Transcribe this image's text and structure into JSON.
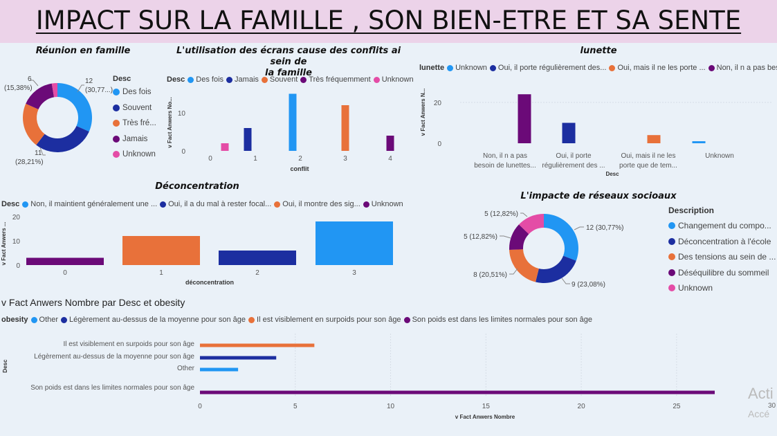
{
  "page_title": "IMPACT SUR LA FAMILLE , SON BIEN-ETRE ET SA SENTE",
  "colors": {
    "blue": "#2196f3",
    "navy": "#1c2ea0",
    "orange": "#e8713a",
    "purple": "#6b0a78",
    "pink": "#e44ca6"
  },
  "watermark": {
    "line1": "Acti",
    "line2": "Accé",
    "tick": "30"
  },
  "chart_data": [
    {
      "id": "reunion",
      "type": "pie",
      "title": "Réunion en famille",
      "legend_title": "Desc",
      "legend": [
        "Des fois",
        "Souvent",
        "Très fré...",
        "Jamais",
        "Unknown"
      ],
      "values": [
        12,
        11,
        8,
        6,
        1
      ],
      "labels": [
        {
          "n": "12",
          "p": "(30,77...)"
        },
        {
          "n": "11",
          "p": "(28,21%)"
        },
        {
          "n": "",
          "p": ""
        },
        {
          "n": "6",
          "p": "(15,38%)"
        },
        {
          "n": "",
          "p": ""
        }
      ]
    },
    {
      "id": "ecrans",
      "type": "bar",
      "title_line1": "L'utilisation des écrans cause des conflits ai sein de",
      "title_line2": "la famille",
      "legend_title": "Desc",
      "legend": [
        "Des fois",
        "Jamais",
        "Souvent",
        "Très fréquemment",
        "Unknown"
      ],
      "xlabel": "conflit",
      "ylabel": "v Fact Anwers No...",
      "xticks": [
        "0",
        "1",
        "2",
        "3",
        "4"
      ],
      "yticks": [
        "0",
        "10"
      ],
      "ylim": [
        0,
        16
      ],
      "points": [
        {
          "x": 0,
          "series": "Unknown",
          "value": 2
        },
        {
          "x": 1,
          "series": "Jamais",
          "value": 6
        },
        {
          "x": 2,
          "series": "Des fois",
          "value": 15
        },
        {
          "x": 3,
          "series": "Souvent",
          "value": 12
        },
        {
          "x": 4,
          "series": "Très fréquemment",
          "value": 4
        }
      ]
    },
    {
      "id": "lunette",
      "type": "bar",
      "title": "lunette",
      "legend_title": "lunette",
      "legend": [
        "Unknown",
        "Oui, il porte régulièrement des...",
        "Oui, mais il ne les porte ...",
        "Non, il n a pas bes..."
      ],
      "xlabel": "Desc",
      "ylabel": "v Fact Anwers N...",
      "yticks": [
        "0",
        "20"
      ],
      "ylim": [
        0,
        27
      ],
      "categories": [
        {
          "l1": "Non, il n a pas",
          "l2": "besoin de lunettes...",
          "value": 24,
          "series": "Non, il n a pas bes..."
        },
        {
          "l1": "Oui, il porte",
          "l2": "régulièrement des ...",
          "value": 10,
          "series": "Oui, il porte régulièrement des..."
        },
        {
          "l1": "Oui, mais il ne les",
          "l2": "porte que de tem...",
          "value": 4,
          "series": "Oui, mais il ne les porte ..."
        },
        {
          "l1": "Unknown",
          "l2": "",
          "value": 1,
          "series": "Unknown"
        }
      ]
    },
    {
      "id": "deconc",
      "type": "bar",
      "title": "Déconcentration",
      "legend_title": "Desc",
      "legend": [
        "Non, il maintient généralement une ...",
        "Oui, il a du mal à rester focal...",
        "Oui, il montre des sig...",
        "Unknown"
      ],
      "xlabel": "déconcentration",
      "ylabel": "v Fact Anwers ...",
      "xticks": [
        "0",
        "1",
        "2",
        "3"
      ],
      "yticks": [
        "0",
        "10",
        "20"
      ],
      "ylim": [
        0,
        20
      ],
      "points": [
        {
          "x": 0,
          "series": "Unknown",
          "value": 3
        },
        {
          "x": 1,
          "series": "Oui, il montre des sig...",
          "value": 12
        },
        {
          "x": 2,
          "series": "Oui, il a du mal à rester focal...",
          "value": 6
        },
        {
          "x": 3,
          "series": "Non, il maintient généralement une ...",
          "value": 18
        }
      ]
    },
    {
      "id": "reseaux",
      "type": "pie",
      "title": "L'impacte de réseaux socioaux",
      "legend_title": "Description",
      "legend": [
        "Changement du compo...",
        "Déconcentration à l'école",
        "Des tensions au sein de ...",
        "Déséquilibre du sommeil",
        "Unknown"
      ],
      "values": [
        12,
        9,
        8,
        5,
        5
      ],
      "labels": [
        "12 (30,77%)",
        "9 (23,08%)",
        "8 (20,51%)",
        "5 (12,82%)",
        "5 (12,82%)"
      ]
    },
    {
      "id": "obesity",
      "type": "bar",
      "title": "v Fact Anwers Nombre par Desc et obesity",
      "legend_title": "obesity",
      "legend": [
        "Other",
        "Légèrement au-dessus de la moyenne pour son âge",
        "Il est visiblement en surpoids pour son âge",
        "Son poids est dans les limites normales pour son âge"
      ],
      "xlabel": "v Fact Anwers Nombre",
      "ylabel": "Desc",
      "xticks": [
        "0",
        "5",
        "10",
        "15",
        "20",
        "25"
      ],
      "xlim": [
        0,
        27
      ],
      "rows": [
        {
          "label": "Il est visiblement en surpoids pour son âge",
          "value": 6
        },
        {
          "label": "Légèrement au-dessus de la moyenne pour son âge",
          "value": 4
        },
        {
          "label": "Other",
          "value": 2
        },
        {
          "label": "Son poids est dans les limites normales pour son âge",
          "value": 27
        }
      ]
    }
  ]
}
